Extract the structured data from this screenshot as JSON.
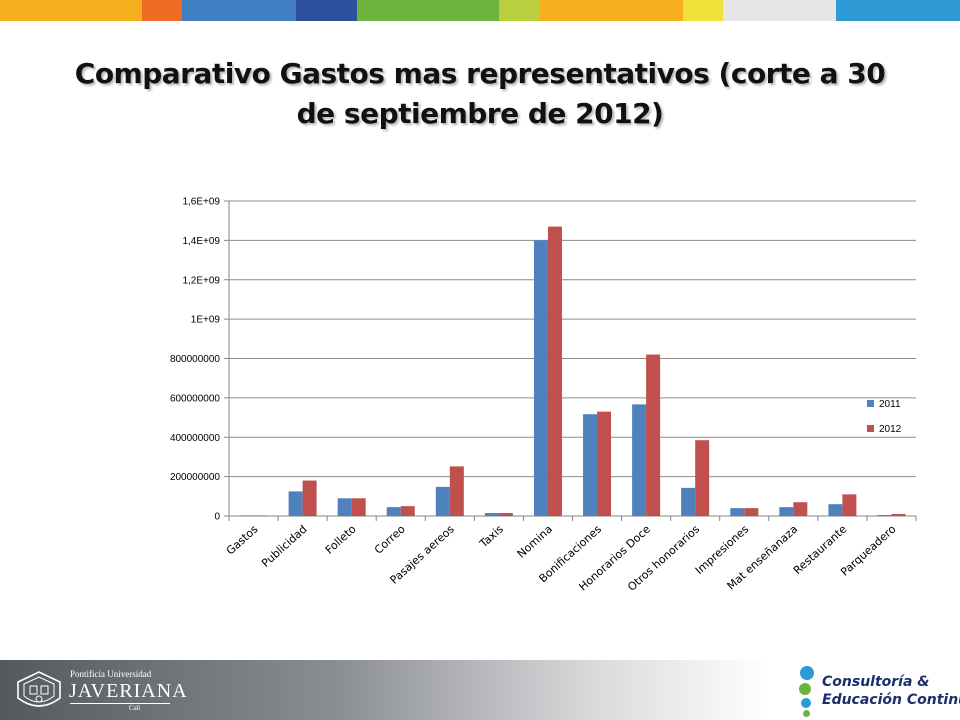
{
  "slide": {
    "title_line1": "Comparativo Gastos mas representativos (corte a 30",
    "title_line2": "de septiembre de 2012)"
  },
  "top_bar_colors": [
    "#f7ae1c",
    "#ee6a25",
    "#3f7fc1",
    "#2e4f9d",
    "#6db33f",
    "#b9cf3d",
    "#f7ae1c",
    "#f0e13a",
    "#e6e6e6",
    "#2d9ad6"
  ],
  "footer": {
    "university_small": "Pontificia Universidad",
    "university_name": "JAVERIANA",
    "university_city": "Cali",
    "brand_line1": "Consultoría &",
    "brand_line2": "Educación Continua"
  },
  "chart_data": {
    "type": "bar",
    "title": "",
    "xlabel": "",
    "ylabel": "",
    "categories": [
      "Gastos",
      "Publicidad",
      "Folleto",
      "Correo",
      "Pasajes aereos",
      "Taxis",
      "Nomina",
      "Bonificaciones",
      "Honorarios Doce",
      "Otros honorarios",
      "Impresiones",
      "Mat enseñanaza",
      "Restaurante",
      "Parqueadero"
    ],
    "series": [
      {
        "name": "2011",
        "color": "#4f81bd",
        "values": [
          3000000,
          125000000,
          90000000,
          45000000,
          148000000,
          15000000,
          1400000000,
          517000000,
          567000000,
          143000000,
          40000000,
          45000000,
          60000000,
          5000000
        ]
      },
      {
        "name": "2012",
        "color": "#c0504d",
        "values": [
          3000000,
          180000000,
          90000000,
          50000000,
          252000000,
          15000000,
          1470000000,
          530000000,
          820000000,
          385000000,
          40000000,
          70000000,
          110000000,
          10000000
        ]
      }
    ],
    "ylim": [
      0,
      1600000000
    ],
    "yticks": [
      "0",
      "200000000",
      "400000000",
      "600000000",
      "800000000",
      "1E+09",
      "1,2E+09",
      "1,4E+09",
      "1,6E+09"
    ],
    "grid": true,
    "legend_position": "right"
  }
}
